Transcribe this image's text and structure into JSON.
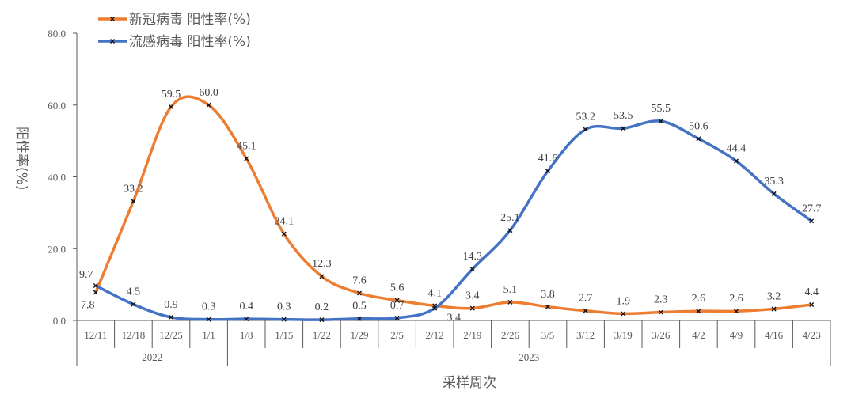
{
  "chart_data": {
    "type": "line",
    "title": "",
    "xlabel": "采样周次",
    "ylabel": "阳性率(%)",
    "ylim": [
      0,
      80
    ],
    "yticks": [
      "0.0",
      "20.0",
      "40.0",
      "60.0",
      "80.0"
    ],
    "grid": false,
    "legend": "top-left",
    "categories": [
      "12/11",
      "12/18",
      "12/25",
      "1/1",
      "1/8",
      "1/15",
      "1/22",
      "1/29",
      "2/5",
      "2/12",
      "2/19",
      "2/26",
      "3/5",
      "3/12",
      "3/19",
      "3/26",
      "4/2",
      "4/9",
      "4/16",
      "4/23"
    ],
    "year_groups": [
      {
        "label": "2022",
        "count": 4
      },
      {
        "label": "2023",
        "count": 16
      }
    ],
    "series": [
      {
        "name": "新冠病毒 阳性率(%)",
        "color": "#ED7D31",
        "values": [
          7.8,
          33.2,
          59.5,
          60.0,
          45.1,
          24.1,
          12.3,
          7.6,
          5.6,
          4.1,
          3.4,
          5.1,
          3.8,
          2.7,
          1.9,
          2.3,
          2.6,
          2.6,
          3.2,
          4.4
        ]
      },
      {
        "name": "流感病毒 阳性率(%)",
        "color": "#4472C4",
        "values": [
          9.7,
          4.5,
          0.9,
          0.3,
          0.4,
          0.3,
          0.2,
          0.5,
          0.7,
          3.4,
          14.3,
          25.1,
          41.6,
          53.2,
          53.5,
          55.5,
          50.6,
          44.4,
          35.3,
          27.7
        ]
      }
    ]
  }
}
